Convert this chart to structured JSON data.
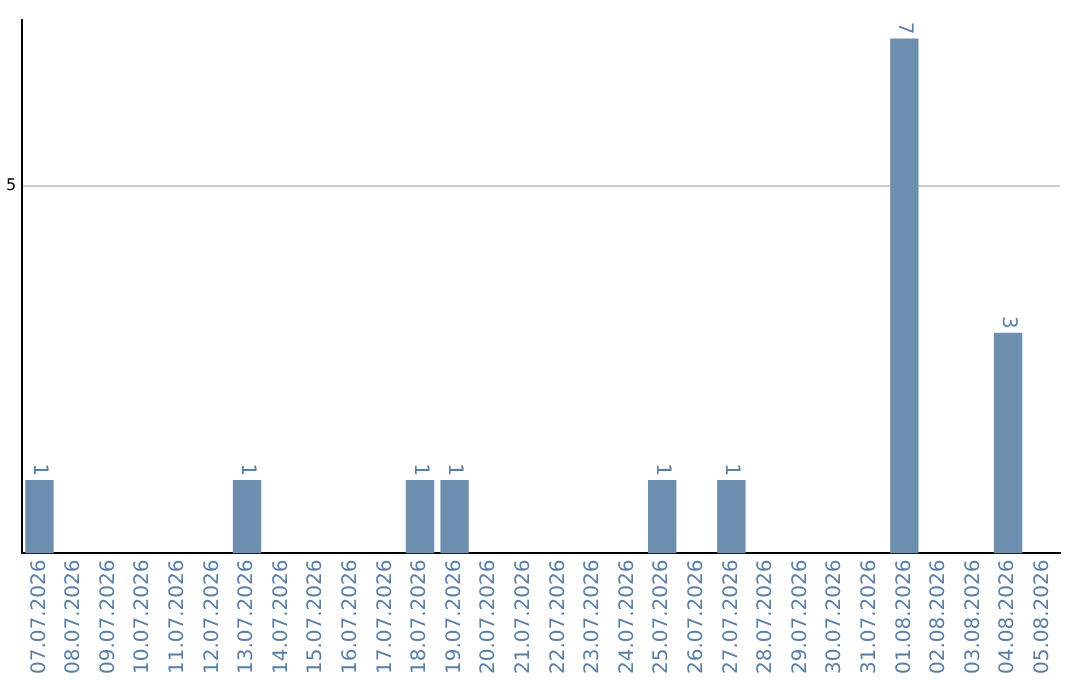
{
  "chart_data": {
    "type": "bar",
    "categories": [
      "07.07.2026",
      "08.07.2026",
      "09.07.2026",
      "10.07.2026",
      "11.07.2026",
      "12.07.2026",
      "13.07.2026",
      "14.07.2026",
      "15.07.2026",
      "16.07.2026",
      "17.07.2026",
      "18.07.2026",
      "19.07.2026",
      "20.07.2026",
      "21.07.2026",
      "22.07.2026",
      "23.07.2026",
      "24.07.2026",
      "25.07.2026",
      "26.07.2026",
      "27.07.2026",
      "28.07.2026",
      "29.07.2026",
      "30.07.2026",
      "31.07.2026",
      "01.08.2026",
      "02.08.2026",
      "03.08.2026",
      "04.08.2026",
      "05.08.2026"
    ],
    "values": [
      1,
      0,
      0,
      0,
      0,
      0,
      1,
      0,
      0,
      0,
      0,
      1,
      1,
      0,
      0,
      0,
      0,
      0,
      1,
      0,
      1,
      0,
      0,
      0,
      0,
      7,
      0,
      0,
      3,
      0
    ],
    "value_labels": [
      "1",
      null,
      null,
      null,
      null,
      null,
      "1",
      null,
      null,
      null,
      null,
      "1",
      "1",
      null,
      null,
      null,
      null,
      null,
      "1",
      null,
      "1",
      null,
      null,
      null,
      null,
      "7",
      null,
      null,
      "3",
      null
    ],
    "color": "#6e8eb0",
    "ylim": [
      0,
      7.25
    ],
    "yticks": [
      5
    ],
    "grid": "y",
    "legend": false
  }
}
